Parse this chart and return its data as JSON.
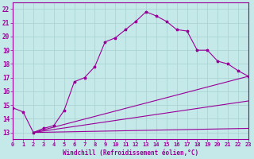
{
  "xlabel": "Windchill (Refroidissement éolien,°C)",
  "bg_color": "#c5e8e8",
  "grid_color": "#a8d0d0",
  "line_color": "#990099",
  "xlim": [
    0,
    23
  ],
  "ylim": [
    12.5,
    22.5
  ],
  "xticks": [
    0,
    1,
    2,
    3,
    4,
    5,
    6,
    7,
    8,
    9,
    10,
    11,
    12,
    13,
    14,
    15,
    16,
    17,
    18,
    19,
    20,
    21,
    22,
    23
  ],
  "yticks": [
    13,
    14,
    15,
    16,
    17,
    18,
    19,
    20,
    21,
    22
  ],
  "curve_x": [
    0,
    1,
    2,
    3,
    4,
    5,
    6,
    7,
    8,
    9,
    10,
    11,
    12,
    13,
    14,
    15,
    16,
    17,
    18,
    19,
    20,
    21,
    22,
    23
  ],
  "curve_y": [
    14.8,
    14.5,
    13.0,
    13.3,
    13.5,
    14.6,
    16.7,
    17.0,
    17.8,
    19.6,
    19.9,
    20.5,
    21.1,
    21.8,
    21.5,
    21.1,
    20.5,
    20.4,
    19.0,
    19.0,
    18.2,
    18.0,
    17.5,
    17.1
  ],
  "fan_lines": [
    {
      "x": [
        2,
        23
      ],
      "y": [
        13.0,
        17.1
      ]
    },
    {
      "x": [
        2,
        23
      ],
      "y": [
        13.0,
        15.3
      ]
    },
    {
      "x": [
        2,
        23
      ],
      "y": [
        13.0,
        13.3
      ]
    }
  ]
}
